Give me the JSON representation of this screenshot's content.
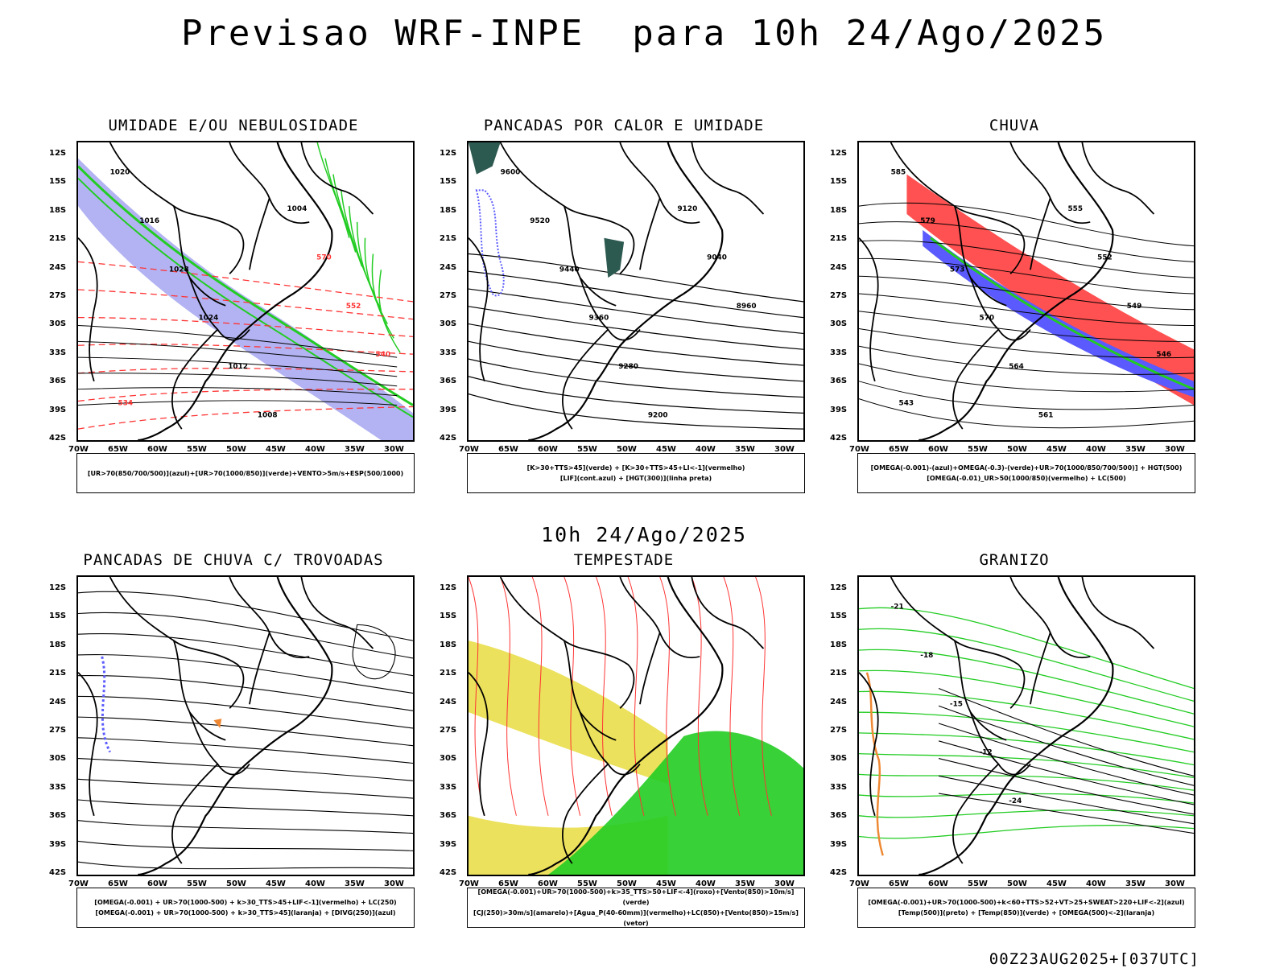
{
  "title": "Previsao WRF-INPE  para 10h 24/Ago/2025",
  "mid_time": "10h 24/Ago/2025",
  "footer": "00Z23AUG2025+[037UTC]",
  "axes": {
    "lat_labels": [
      "12S",
      "15S",
      "18S",
      "21S",
      "24S",
      "27S",
      "30S",
      "33S",
      "36S",
      "39S",
      "42S"
    ],
    "lon_labels": [
      "70W",
      "65W",
      "60W",
      "55W",
      "50W",
      "45W",
      "40W",
      "35W",
      "30W"
    ]
  },
  "colors": {
    "blue": "#5a5aff",
    "green": "#22cc22",
    "red": "#ff3333",
    "orange": "#ee8833",
    "yellow": "#e8dc40",
    "darkgreen": "#2d5a50"
  },
  "panels": [
    {
      "id": "umidade",
      "title": "UMIDADE E/OU NEBULOSIDADE",
      "legend": [
        "[UR>70(850/700/500)](azul)+[UR>70(1000/850)](verde)+VENTO>5m/s+ESP(500/1000)"
      ],
      "labels": [
        "1020",
        "1016",
        "1028",
        "1024",
        "1012",
        "1008",
        "1004",
        "570",
        "552",
        "540",
        "534"
      ]
    },
    {
      "id": "pancadas_calor",
      "title": "PANCADAS POR CALOR E UMIDADE",
      "legend": [
        "[K>30+TTS>45](verde) + [K>30+TTS>45+LI<-1](vermelho)",
        "[LIF](cont.azul) + [HGT(300)](linha preta)"
      ],
      "labels": [
        "9600",
        "9520",
        "9440",
        "9360",
        "9280",
        "9200",
        "9120",
        "9040",
        "8960"
      ]
    },
    {
      "id": "chuva",
      "title": "CHUVA",
      "legend": [
        "[OMEGA(-0.001)-(azul)+OMEGA(-0.3)-(verde)+UR>70(1000/850/700/500)] + HGT(500)",
        "[OMEGA(-0.01)_UR>50(1000/850)(vermelho) + LC(500)"
      ],
      "labels": [
        "585",
        "579",
        "573",
        "570",
        "564",
        "561",
        "555",
        "552",
        "549",
        "546",
        "543"
      ]
    },
    {
      "id": "pancadas_trovoadas",
      "title": "PANCADAS DE CHUVA C/ TROVOADAS",
      "legend": [
        "[OMEGA(-0.001) + UR>70(1000-500) + k>30_TTS>45+LIF<-1](vermelho) + LC(250)",
        "[OMEGA(-0.001) + UR>70(1000-500) + k>30_TTS>45](laranja) + [DIVG(250)](azul)"
      ],
      "labels": []
    },
    {
      "id": "tempestade",
      "title": "TEMPESTADE",
      "legend": [
        "[OMEGA(-0.001)+UR>70(1000-500)+k>35_TTS>50+LIF<-4](roxo)+[Vento(850)>10m/s](verde)",
        "[CJ(250)>30m/s](amarelo)+[Agua_P(40-60mm)](vermelho)+LC(850)+[Vento(850)>15m/s](vetor)"
      ],
      "labels": []
    },
    {
      "id": "granizo",
      "title": "GRANIZO",
      "legend": [
        "[OMEGA(-0.001)+UR>70(1000-500)+k<60+TTS>52+VT>25+SWEAT>220+LIF<-2](azul)",
        "[Temp(500)](preto) + [Temp(850)](verde) + [OMEGA(500)<-2](laranja)"
      ],
      "labels": [
        "-21",
        "-18",
        "-15",
        "-12",
        "-24"
      ]
    }
  ]
}
